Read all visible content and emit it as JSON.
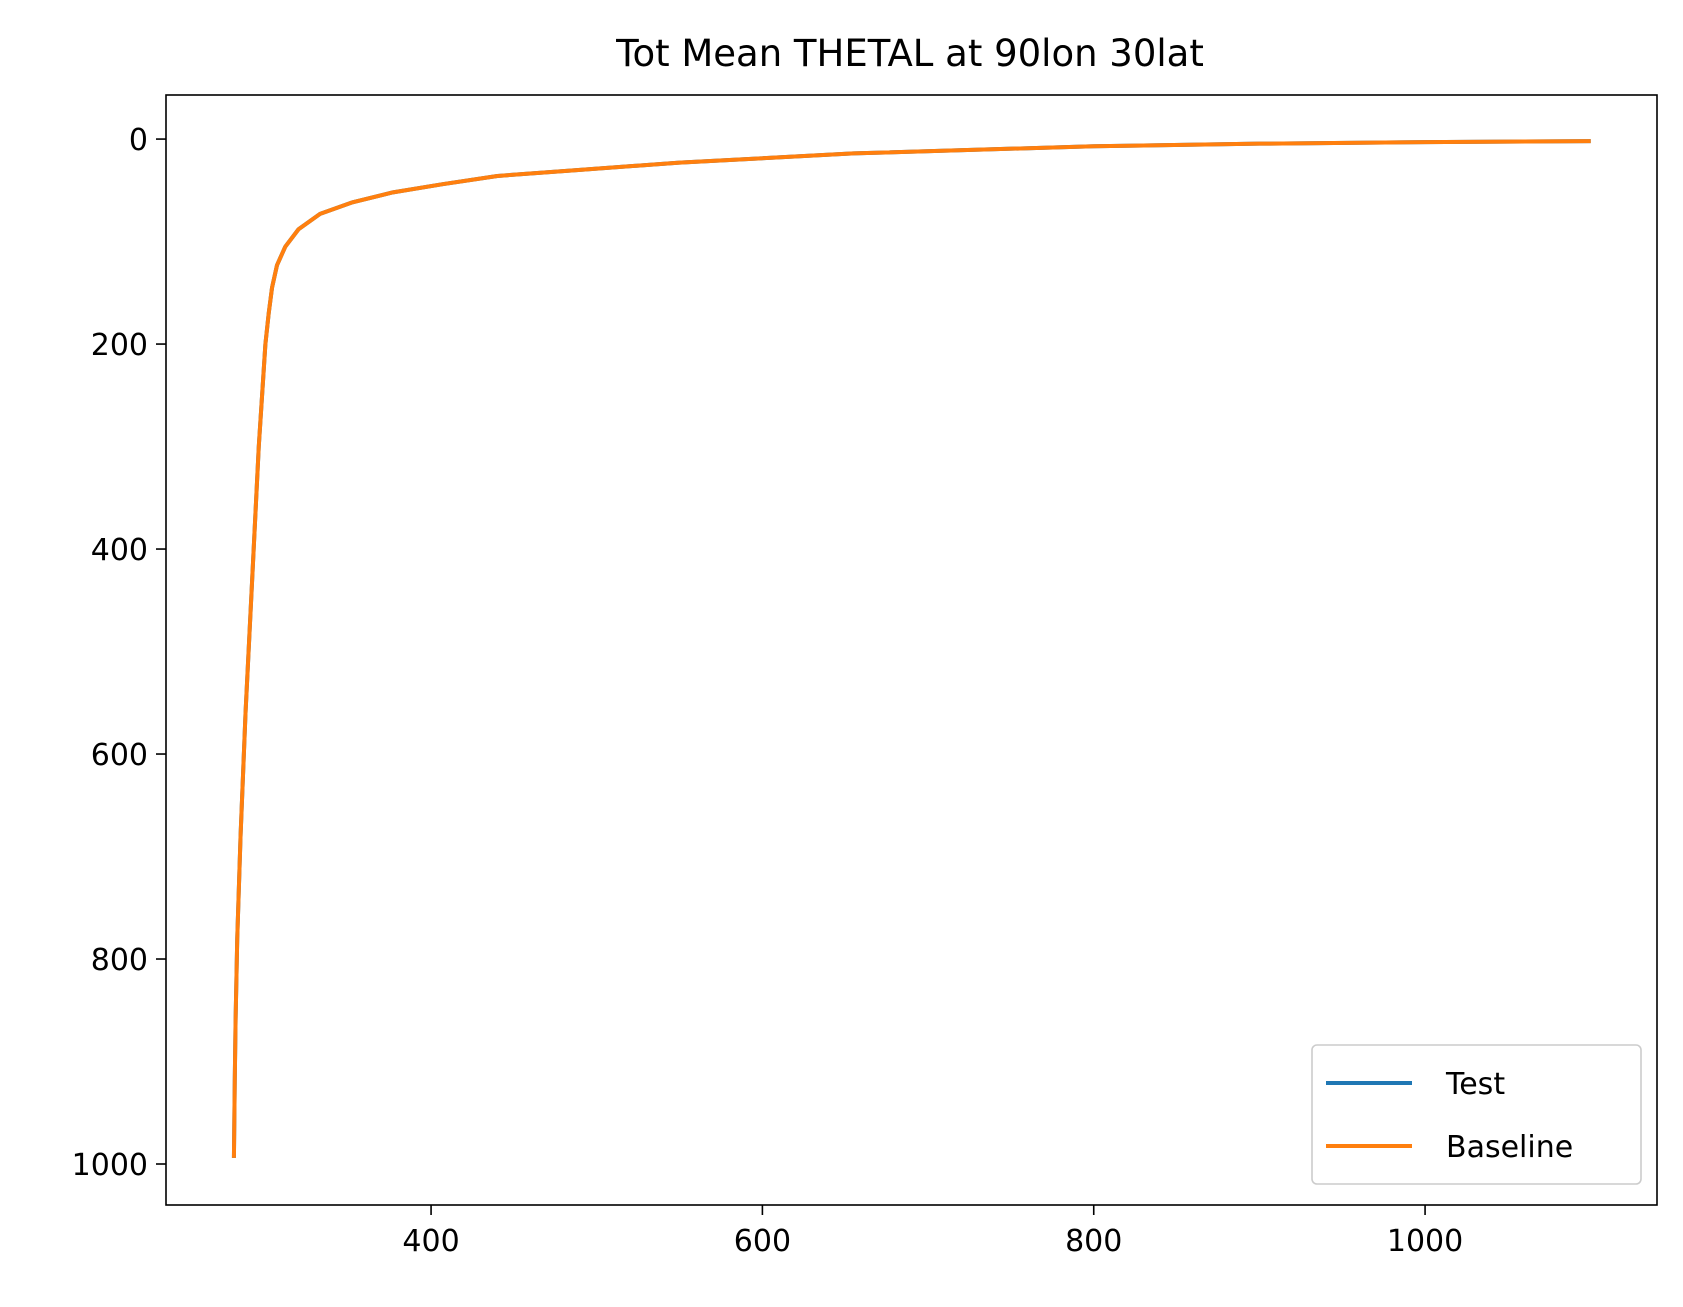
{
  "chart_data": {
    "type": "line",
    "title": "Tot Mean THETAL at 90lon 30lat",
    "xlabel": "",
    "ylabel": "",
    "xlim": [
      240,
      1140
    ],
    "ylim": [
      1040,
      -43
    ],
    "y_inverted": true,
    "x_ticks": [
      400,
      600,
      800,
      1000
    ],
    "y_ticks": [
      0,
      200,
      400,
      600,
      800,
      1000
    ],
    "grid": false,
    "legend_position": "lower-right",
    "series": [
      {
        "name": "Test",
        "color": "#1f77b4",
        "x": [
          281,
          281.5,
          282,
          283,
          285,
          288,
          292,
          296,
          300,
          302,
          304,
          307,
          312,
          320,
          333,
          352,
          377,
          407,
          440,
          490,
          550,
          655,
          800,
          900,
          1000,
          1100
        ],
        "y": [
          994,
          920,
          860,
          780,
          680,
          560,
          430,
          300,
          200,
          170,
          145,
          123,
          105,
          88,
          73,
          62,
          52,
          44,
          36,
          30,
          23,
          14,
          7,
          4.5,
          3,
          2
        ]
      },
      {
        "name": "Baseline",
        "color": "#ff7f0e",
        "x": [
          281,
          281.5,
          282,
          283,
          285,
          288,
          292,
          296,
          300,
          302,
          304,
          307,
          312,
          320,
          333,
          352,
          377,
          407,
          440,
          490,
          550,
          655,
          800,
          900,
          1000,
          1100
        ],
        "y": [
          994,
          920,
          860,
          780,
          680,
          560,
          430,
          300,
          200,
          170,
          145,
          123,
          105,
          88,
          73,
          62,
          52,
          44,
          36,
          30,
          23,
          14,
          7,
          4.5,
          3,
          2
        ]
      }
    ]
  }
}
